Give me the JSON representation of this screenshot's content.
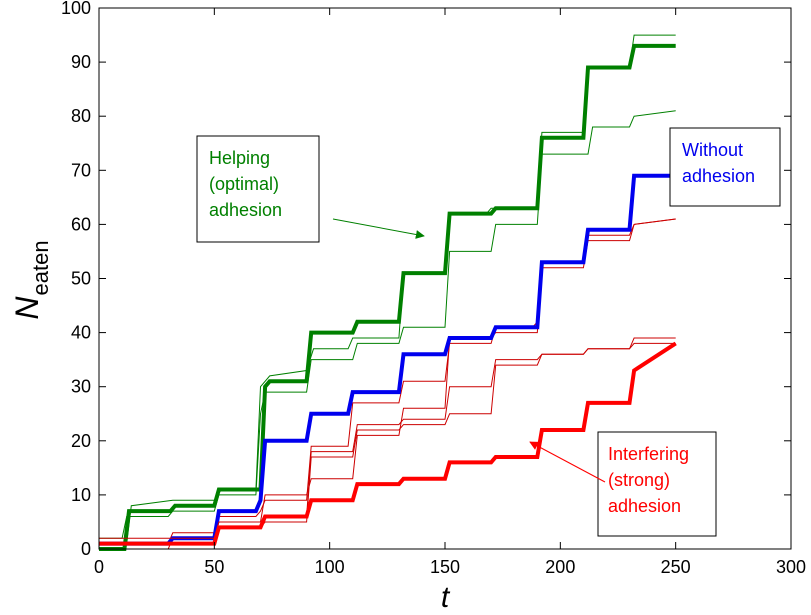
{
  "chart_data": {
    "type": "line",
    "xlabel": "t",
    "ylabel_main": "N",
    "ylabel_sub": "eaten",
    "xlim": [
      0,
      300
    ],
    "ylim": [
      0,
      100
    ],
    "xticks": [
      0,
      50,
      100,
      150,
      200,
      250,
      300
    ],
    "yticks": [
      0,
      10,
      20,
      30,
      40,
      50,
      60,
      70,
      80,
      90,
      100
    ],
    "grid": false,
    "series": [
      {
        "name": "Helping (optimal) adhesion - run 2",
        "color": "#008000",
        "width": 1,
        "x": [
          0,
          12,
          14,
          32,
          50,
          53,
          68,
          70,
          72,
          74,
          90,
          93,
          108,
          110,
          130,
          132,
          150,
          152,
          168,
          170,
          190,
          192,
          210,
          212,
          230,
          232,
          250
        ],
        "y": [
          1,
          1,
          8,
          9,
          9,
          11,
          11,
          30,
          31,
          32,
          33,
          37,
          37,
          39,
          39,
          51,
          51,
          62,
          62,
          63,
          63,
          77,
          77,
          89,
          89,
          95,
          95
        ]
      },
      {
        "name": "Helping (optimal) adhesion - run 3",
        "color": "#008000",
        "width": 1,
        "x": [
          0,
          10,
          12,
          30,
          32,
          50,
          52,
          68,
          70,
          72,
          90,
          92,
          110,
          112,
          130,
          132,
          150,
          152,
          170,
          172,
          190,
          192,
          212,
          214,
          230,
          232,
          250
        ],
        "y": [
          2,
          2,
          6,
          6,
          7,
          7,
          10,
          10,
          25,
          29,
          29,
          35,
          35,
          38,
          38,
          41,
          41,
          55,
          55,
          60,
          60,
          73,
          73,
          78,
          78,
          80,
          81
        ]
      },
      {
        "name": "Helping (optimal) adhesion - mean",
        "color": "#008000",
        "width": 4,
        "x": [
          0,
          11,
          13,
          31,
          33,
          50,
          52,
          70,
          72,
          74,
          90,
          92,
          110,
          112,
          130,
          132,
          150,
          152,
          170,
          172,
          190,
          192,
          210,
          212,
          230,
          232,
          250
        ],
        "y": [
          0,
          0,
          7,
          7,
          8,
          8,
          11,
          11,
          30,
          31,
          31,
          40,
          40,
          42,
          42,
          51,
          51,
          62,
          62,
          63,
          63,
          76,
          76,
          89,
          89,
          93,
          93
        ]
      },
      {
        "name": "Without adhesion - run 2",
        "color": "#cc0000",
        "width": 1,
        "x": [
          0,
          30,
          32,
          50,
          52,
          68,
          70,
          72,
          90,
          92,
          108,
          110,
          130,
          132,
          150,
          152,
          170,
          172,
          188,
          190,
          192,
          210,
          212,
          230,
          232,
          250
        ],
        "y": [
          1,
          1,
          3,
          3,
          6,
          6,
          7,
          9,
          9,
          19,
          19,
          27,
          27,
          31,
          31,
          38,
          38,
          41,
          41,
          42,
          52,
          52,
          57,
          57,
          60,
          61
        ]
      },
      {
        "name": "Without adhesion - run 3",
        "color": "#cc0000",
        "width": 1,
        "x": [
          0,
          30,
          32,
          50,
          52,
          70,
          72,
          90,
          92,
          110,
          112,
          130,
          132,
          150,
          152,
          170,
          172,
          190,
          192,
          210,
          212,
          230,
          232,
          250
        ],
        "y": [
          0,
          0,
          2,
          2,
          5,
          5,
          10,
          10,
          13,
          13,
          21,
          21,
          26,
          26,
          39,
          39,
          40,
          40,
          53,
          53,
          58,
          58,
          60,
          61
        ]
      },
      {
        "name": "Without adhesion - mean",
        "color": "#0000ee",
        "width": 4,
        "x": [
          0,
          30,
          32,
          50,
          52,
          68,
          70,
          72,
          90,
          92,
          108,
          110,
          130,
          132,
          150,
          152,
          170,
          172,
          190,
          192,
          210,
          212,
          230,
          232,
          250
        ],
        "y": [
          1,
          1,
          2,
          2,
          7,
          7,
          9,
          20,
          20,
          25,
          25,
          29,
          29,
          36,
          36,
          39,
          39,
          41,
          41,
          53,
          53,
          59,
          59,
          69,
          69
        ]
      },
      {
        "name": "Interfering (strong) adhesion - run 2",
        "color": "#cc0000",
        "width": 1,
        "x": [
          0,
          50,
          52,
          70,
          72,
          90,
          92,
          110,
          112,
          130,
          132,
          150,
          152,
          170,
          172,
          190,
          192,
          210,
          212,
          230,
          232,
          250
        ],
        "y": [
          2,
          2,
          5,
          5,
          6,
          6,
          18,
          18,
          23,
          23,
          24,
          24,
          30,
          30,
          35,
          35,
          36,
          36,
          37,
          37,
          39,
          39
        ]
      },
      {
        "name": "Interfering (strong) adhesion - run 3",
        "color": "#cc0000",
        "width": 1,
        "x": [
          0,
          50,
          52,
          70,
          72,
          90,
          92,
          110,
          112,
          130,
          132,
          150,
          152,
          170,
          172,
          190,
          192,
          210,
          212,
          230,
          232,
          250
        ],
        "y": [
          1,
          1,
          4,
          4,
          5,
          5,
          17,
          17,
          22,
          22,
          23,
          23,
          25,
          25,
          34,
          34,
          36,
          36,
          37,
          37,
          38,
          38
        ]
      },
      {
        "name": "Interfering (strong) adhesion - mean",
        "color": "#ff0000",
        "width": 4,
        "x": [
          0,
          50,
          52,
          70,
          72,
          90,
          92,
          110,
          112,
          130,
          132,
          150,
          152,
          170,
          172,
          190,
          192,
          210,
          212,
          230,
          232,
          250
        ],
        "y": [
          1,
          1,
          4,
          4,
          6,
          6,
          9,
          9,
          12,
          12,
          13,
          13,
          16,
          16,
          17,
          17,
          22,
          22,
          27,
          27,
          33,
          38
        ]
      }
    ],
    "annotations": [
      {
        "id": "helping",
        "lines": [
          "Helping",
          "(optimal)",
          "adhesion"
        ],
        "color": "#008000",
        "box_color": "#000000",
        "arrow": true
      },
      {
        "id": "without",
        "lines": [
          "Without",
          "adhesion"
        ],
        "color": "#0000ee",
        "box_color": "#000000",
        "arrow": false
      },
      {
        "id": "interfering",
        "lines": [
          "Interfering",
          "(strong)",
          "adhesion"
        ],
        "color": "#ff0000",
        "box_color": "#000000",
        "arrow": true
      }
    ]
  }
}
